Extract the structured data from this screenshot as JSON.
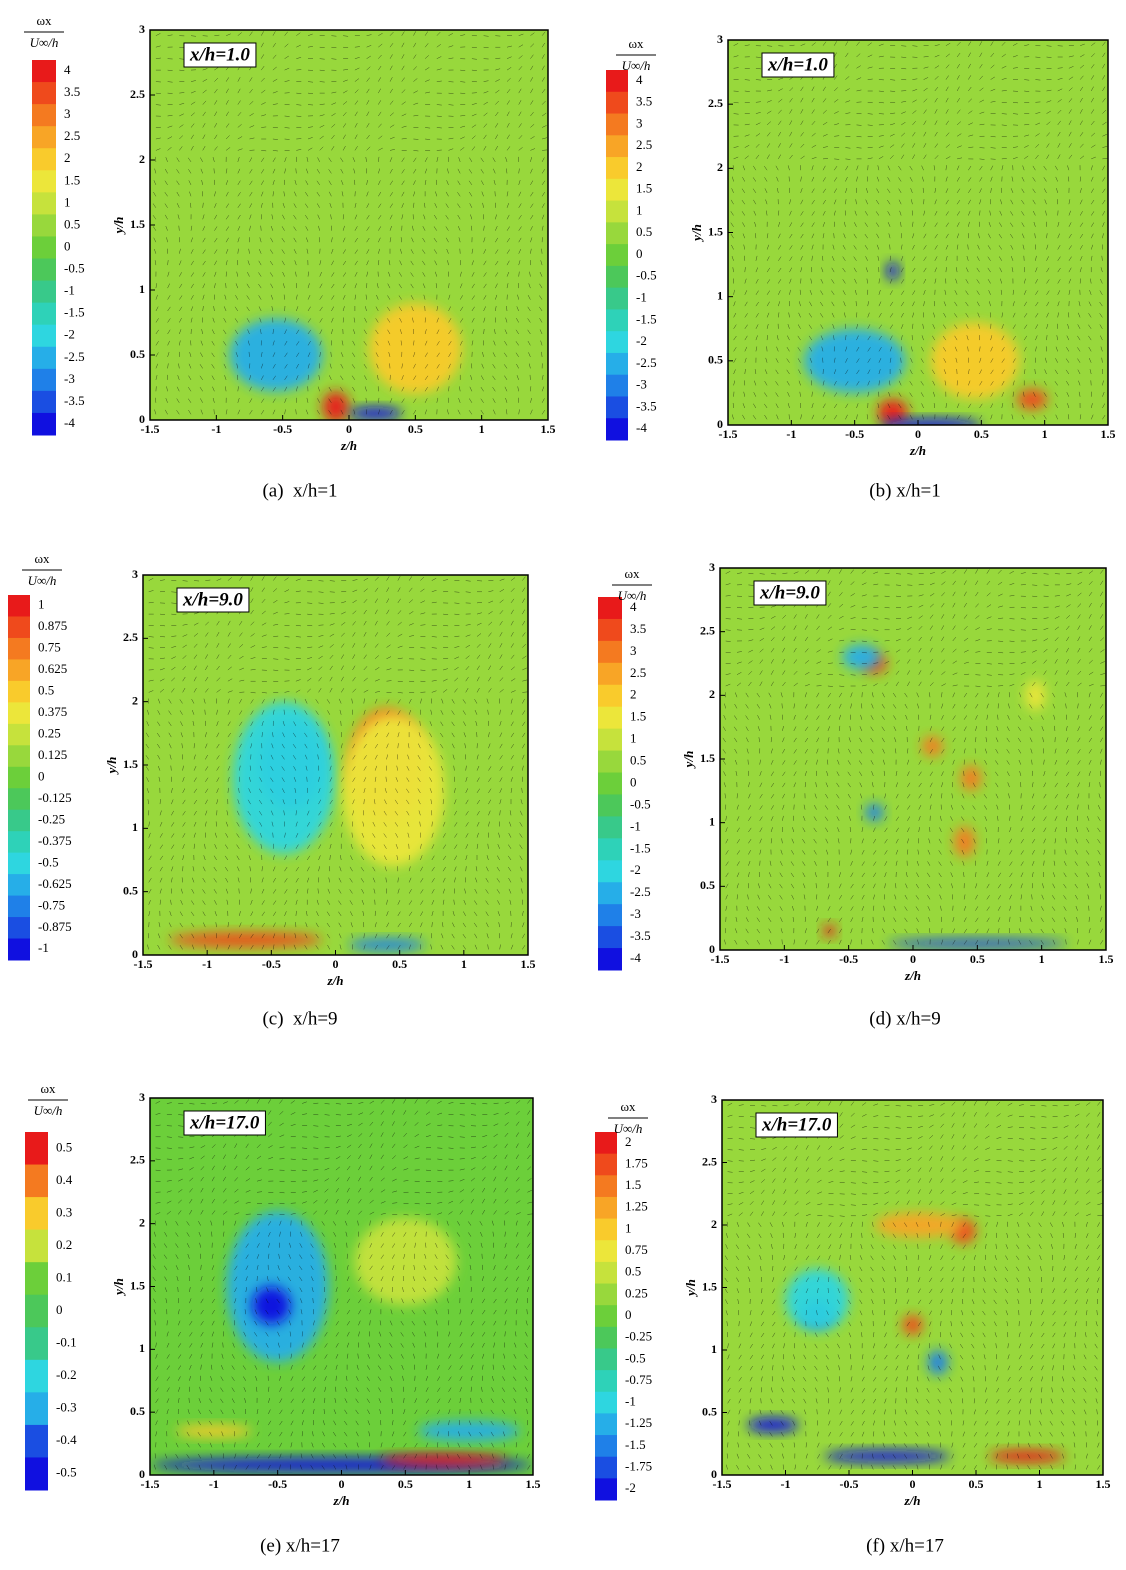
{
  "chart_data": [
    {
      "type": "contour",
      "annotation": "x/h=1.0",
      "caption": "(a)  x/h=1",
      "xlabel": "z/h",
      "ylabel": "y/h",
      "xlim": [
        -1.5,
        1.5
      ],
      "ylim": [
        0,
        3
      ],
      "xticks": [
        -1.5,
        -1,
        -0.5,
        0,
        0.5,
        1,
        1.5
      ],
      "yticks": [
        0,
        0.5,
        1,
        1.5,
        2,
        2.5,
        3
      ],
      "colorbar": {
        "numerator": "ωx",
        "denominator": "U∞/h",
        "levels": [
          4,
          3.5,
          3,
          2.5,
          2,
          1.5,
          1,
          0.5,
          0,
          -0.5,
          -1,
          -1.5,
          -2,
          -2.5,
          -3,
          -3.5,
          -4
        ],
        "colors": [
          "#e81a1a",
          "#ef4a1c",
          "#f47a20",
          "#f8a526",
          "#f9cb2c",
          "#ece63a",
          "#c6e23c",
          "#98d83c",
          "#6ccf3a",
          "#4cc85a",
          "#38c98a",
          "#2ed2b8",
          "#2ed6e0",
          "#26aee8",
          "#1f80e8",
          "#1a4ee2",
          "#1010e0"
        ]
      }
    },
    {
      "type": "contour",
      "annotation": "x/h=1.0",
      "caption": "(b) x/h=1",
      "xlabel": "z/h",
      "ylabel": "y/h",
      "xlim": [
        -1.5,
        1.5
      ],
      "ylim": [
        0,
        3
      ],
      "xticks": [
        -1.5,
        -1,
        -0.5,
        0,
        0.5,
        1,
        1.5
      ],
      "yticks": [
        0,
        0.5,
        1,
        1.5,
        2,
        2.5,
        3
      ],
      "colorbar": {
        "numerator": "ωx",
        "denominator": "U∞/h",
        "levels": [
          4,
          3.5,
          3,
          2.5,
          2,
          1.5,
          1,
          0.5,
          0,
          -0.5,
          -1,
          -1.5,
          -2,
          -2.5,
          -3,
          -3.5,
          -4
        ],
        "colors": [
          "#e81a1a",
          "#ef4a1c",
          "#f47a20",
          "#f8a526",
          "#f9cb2c",
          "#ece63a",
          "#c6e23c",
          "#98d83c",
          "#6ccf3a",
          "#4cc85a",
          "#38c98a",
          "#2ed2b8",
          "#2ed6e0",
          "#26aee8",
          "#1f80e8",
          "#1a4ee2",
          "#1010e0"
        ]
      }
    },
    {
      "type": "contour",
      "annotation": "x/h=9.0",
      "caption": "(c)  x/h=9",
      "xlabel": "z/h",
      "ylabel": "y/h",
      "xlim": [
        -1.5,
        1.5
      ],
      "ylim": [
        0,
        3
      ],
      "xticks": [
        -1.5,
        -1,
        -0.5,
        0,
        0.5,
        1,
        1.5
      ],
      "yticks": [
        0,
        0.5,
        1,
        1.5,
        2,
        2.5,
        3
      ],
      "colorbar": {
        "numerator": "ωx",
        "denominator": "U∞/h",
        "levels": [
          1,
          0.875,
          0.75,
          0.625,
          0.5,
          0.375,
          0.25,
          0.125,
          0,
          -0.125,
          -0.25,
          -0.375,
          -0.5,
          -0.625,
          -0.75,
          -0.875,
          -1
        ],
        "colors": [
          "#e81a1a",
          "#ef4a1c",
          "#f47a20",
          "#f8a526",
          "#f9cb2c",
          "#ece63a",
          "#c6e23c",
          "#98d83c",
          "#6ccf3a",
          "#4cc85a",
          "#38c98a",
          "#2ed2b8",
          "#2ed6e0",
          "#26aee8",
          "#1f80e8",
          "#1a4ee2",
          "#1010e0"
        ]
      }
    },
    {
      "type": "contour",
      "annotation": "x/h=9.0",
      "caption": "(d) x/h=9",
      "xlabel": "z/h",
      "ylabel": "y/h",
      "xlim": [
        -1.5,
        1.5
      ],
      "ylim": [
        0,
        3
      ],
      "xticks": [
        -1.5,
        -1,
        -0.5,
        0,
        0.5,
        1,
        1.5
      ],
      "yticks": [
        0,
        0.5,
        1,
        1.5,
        2,
        2.5,
        3
      ],
      "colorbar": {
        "numerator": "ωx",
        "denominator": "U∞/h",
        "levels": [
          4,
          3.5,
          3,
          2.5,
          2,
          1.5,
          1,
          0.5,
          0,
          -0.5,
          -1,
          -1.5,
          -2,
          -2.5,
          -3,
          -3.5,
          -4
        ],
        "colors": [
          "#e81a1a",
          "#ef4a1c",
          "#f47a20",
          "#f8a526",
          "#f9cb2c",
          "#ece63a",
          "#c6e23c",
          "#98d83c",
          "#6ccf3a",
          "#4cc85a",
          "#38c98a",
          "#2ed2b8",
          "#2ed6e0",
          "#26aee8",
          "#1f80e8",
          "#1a4ee2",
          "#1010e0"
        ]
      }
    },
    {
      "type": "contour",
      "annotation": "x/h=17.0",
      "caption": "(e) x/h=17",
      "xlabel": "z/h",
      "ylabel": "y/h",
      "xlim": [
        -1.5,
        1.5
      ],
      "ylim": [
        0,
        3
      ],
      "xticks": [
        -1.5,
        -1,
        -0.5,
        0,
        0.5,
        1,
        1.5
      ],
      "yticks": [
        0,
        0.5,
        1,
        1.5,
        2,
        2.5,
        3
      ],
      "colorbar": {
        "numerator": "ωx",
        "denominator": "U∞/h",
        "levels": [
          0.5,
          0.4,
          0.3,
          0.2,
          0.1,
          0,
          -0.1,
          -0.2,
          -0.3,
          -0.4,
          -0.5
        ],
        "colors": [
          "#e81a1a",
          "#f47a20",
          "#f9cb2c",
          "#c6e23c",
          "#6ccf3a",
          "#4cc85a",
          "#38c98a",
          "#2ed6e0",
          "#26aee8",
          "#1a4ee2",
          "#1010e0"
        ]
      }
    },
    {
      "type": "contour",
      "annotation": "x/h=17.0",
      "caption": "(f) x/h=17",
      "xlabel": "z/h",
      "ylabel": "y/h",
      "xlim": [
        -1.5,
        1.5
      ],
      "ylim": [
        0,
        3
      ],
      "xticks": [
        -1.5,
        -1,
        -0.5,
        0,
        0.5,
        1,
        1.5
      ],
      "yticks": [
        0,
        0.5,
        1,
        1.5,
        2,
        2.5,
        3
      ],
      "colorbar": {
        "numerator": "ωx",
        "denominator": "U∞/h",
        "levels": [
          2,
          1.75,
          1.5,
          1.25,
          1,
          0.75,
          0.5,
          0.25,
          0,
          -0.25,
          -0.5,
          -0.75,
          -1,
          -1.25,
          -1.5,
          -1.75,
          -2
        ],
        "colors": [
          "#e81a1a",
          "#ef4a1c",
          "#f47a20",
          "#f8a526",
          "#f9cb2c",
          "#ece63a",
          "#c6e23c",
          "#98d83c",
          "#6ccf3a",
          "#4cc85a",
          "#38c98a",
          "#2ed2b8",
          "#2ed6e0",
          "#26aee8",
          "#1f80e8",
          "#1a4ee2",
          "#1010e0"
        ]
      }
    }
  ]
}
